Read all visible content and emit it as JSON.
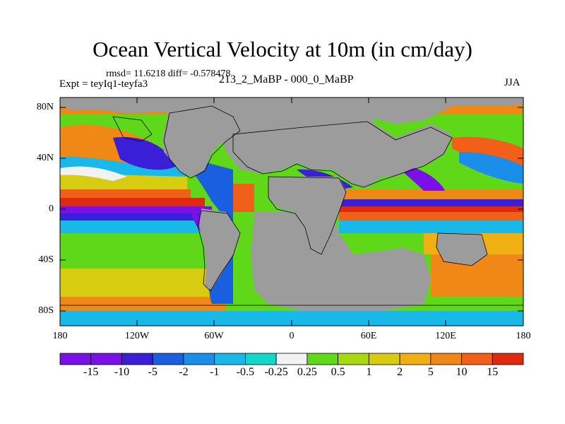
{
  "title": "Ocean Vertical Velocity at 10m (in cm/day)",
  "stats": "rmsd= 11.6218 diff= -0.578478",
  "experiment": "Expt = teyIq1-teyfa3",
  "model_label": "213_2_MaBP - 000_0_MaBP",
  "season": "JJA",
  "lat_ticks": [
    "80N",
    "40N",
    "0",
    "40S",
    "80S"
  ],
  "lon_ticks": [
    "180",
    "120W",
    "60W",
    "0",
    "60E",
    "120E",
    "180"
  ],
  "colorbar": {
    "labels": [
      "-15",
      "-10",
      "-5",
      "-2",
      "-1",
      "-0.5",
      "-0.25",
      "0.25",
      "0.5",
      "1",
      "2",
      "5",
      "10",
      "15"
    ],
    "colors": [
      "#7a10e6",
      "#3a1ed8",
      "#1a5fe0",
      "#1a8ee8",
      "#18b8e8",
      "#12d8c8",
      "#f2f2f2",
      "#60d81a",
      "#a8d810",
      "#d8cc10",
      "#f0b014",
      "#f08818",
      "#f06018",
      "#e02a10"
    ]
  },
  "map_colors": {
    "land": "#9c9c9c",
    "ocean_base": "#60d81a"
  }
}
